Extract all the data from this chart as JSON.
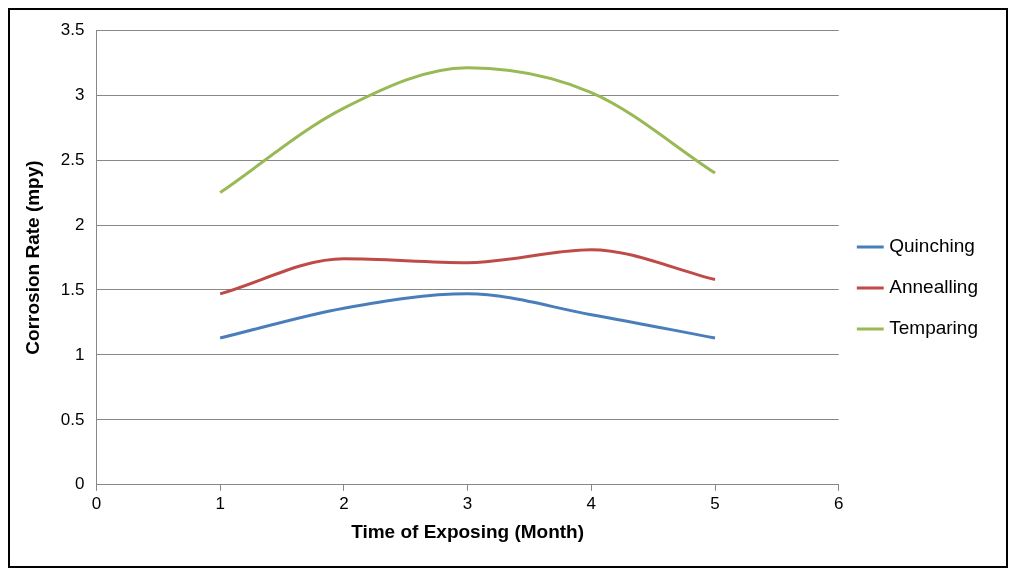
{
  "chart_data": {
    "type": "line",
    "xlabel": "Time of Exposing (Month)",
    "ylabel": "Corrosion Rate (mpy)",
    "x": [
      1,
      2,
      3,
      4,
      5
    ],
    "series": [
      {
        "name": "Quinching",
        "color": "#4a7ebb",
        "values": [
          1.13,
          1.36,
          1.47,
          1.31,
          1.13
        ]
      },
      {
        "name": "Annealling",
        "color": "#be4b48",
        "values": [
          1.47,
          1.74,
          1.71,
          1.81,
          1.58
        ]
      },
      {
        "name": "Temparing",
        "color": "#98b954",
        "values": [
          2.25,
          2.9,
          3.21,
          3.02,
          2.4
        ]
      }
    ],
    "xlim": [
      0,
      6
    ],
    "xticks": [
      0,
      1,
      2,
      3,
      4,
      5,
      6
    ],
    "ylim": [
      0,
      3.5
    ],
    "yticks": [
      0,
      0.5,
      1,
      1.5,
      2,
      2.5,
      3,
      3.5
    ],
    "grid": "y",
    "legend": "right",
    "marker": "none",
    "line_style": "solid"
  }
}
